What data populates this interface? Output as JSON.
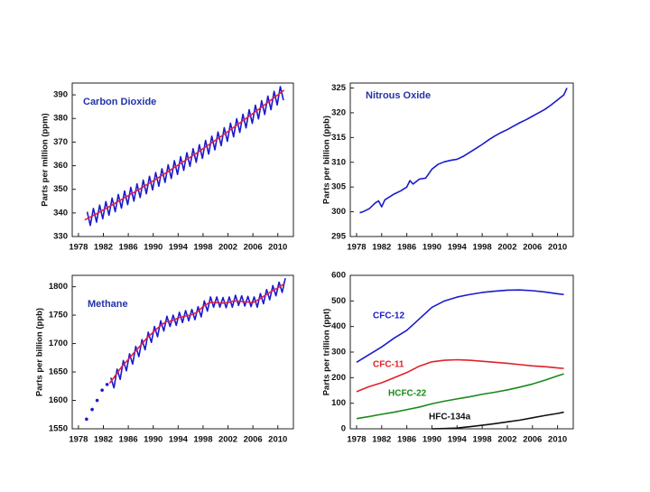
{
  "chart_data": [
    {
      "type": "line",
      "title": "Carbon Dioxide",
      "ylabel": "Parts per million (ppm)",
      "xlim": [
        1977,
        2012.5
      ],
      "xticks": [
        1978,
        1982,
        1986,
        1990,
        1994,
        1998,
        2002,
        2006,
        2010
      ],
      "ylim": [
        330,
        395
      ],
      "yticks": [
        330,
        340,
        350,
        360,
        370,
        380,
        390
      ],
      "series": [
        {
          "color": "#1a1acc",
          "x": [
            1979.4,
            1979.9,
            1980.4,
            1980.9,
            1981.4,
            1981.9,
            1982.4,
            1982.9,
            1983.4,
            1983.9,
            1984.4,
            1984.9,
            1985.4,
            1985.9,
            1986.4,
            1986.9,
            1987.4,
            1987.9,
            1988.4,
            1988.9,
            1989.4,
            1989.9,
            1990.4,
            1990.9,
            1991.4,
            1991.9,
            1992.4,
            1992.9,
            1993.4,
            1993.9,
            1994.4,
            1994.9,
            1995.4,
            1995.9,
            1996.4,
            1996.9,
            1997.4,
            1997.9,
            1998.4,
            1998.9,
            1999.4,
            1999.9,
            2000.4,
            2000.9,
            2001.4,
            2001.9,
            2002.4,
            2002.9,
            2003.4,
            2003.9,
            2004.4,
            2004.9,
            2005.4,
            2005.9,
            2006.4,
            2006.9,
            2007.4,
            2007.9,
            2008.4,
            2008.9,
            2009.4,
            2009.9,
            2010.4,
            2010.9
          ],
          "values": [
            340.5,
            334.7,
            341.9,
            336.1,
            343.3,
            337.5,
            344.8,
            339.0,
            346.3,
            340.5,
            347.8,
            342.0,
            349.3,
            343.5,
            350.8,
            345.0,
            352.3,
            346.5,
            353.9,
            348.1,
            355.5,
            349.7,
            357.1,
            351.3,
            358.7,
            352.9,
            360.4,
            354.6,
            362.1,
            356.3,
            363.8,
            358.0,
            365.5,
            359.7,
            367.2,
            361.4,
            368.9,
            363.1,
            370.7,
            364.9,
            372.5,
            366.7,
            374.3,
            368.5,
            376.1,
            370.3,
            378.0,
            372.2,
            379.9,
            374.1,
            381.8,
            376.0,
            383.7,
            377.9,
            385.6,
            379.8,
            387.5,
            381.7,
            389.5,
            383.7,
            391.5,
            385.7,
            393.5,
            387.7
          ]
        },
        {
          "color": "#e0204a",
          "x": [
            1979,
            1980,
            1981,
            1982,
            1983,
            1984,
            1985,
            1986,
            1987,
            1988,
            1989,
            1990,
            1991,
            1992,
            1993,
            1994,
            1995,
            1996,
            1997,
            1998,
            1999,
            2000,
            2001,
            2002,
            2003,
            2004,
            2005,
            2006,
            2007,
            2008,
            2009,
            2010,
            2011
          ],
          "values": [
            337.0,
            338.4,
            339.8,
            341.3,
            342.8,
            344.3,
            345.8,
            347.3,
            348.8,
            350.4,
            352.0,
            353.6,
            355.2,
            356.9,
            358.6,
            360.3,
            362.0,
            363.7,
            365.4,
            367.2,
            369.0,
            370.8,
            372.6,
            374.5,
            376.4,
            378.3,
            380.2,
            382.1,
            384.0,
            386.0,
            388.0,
            390.0,
            392.0
          ]
        }
      ]
    },
    {
      "type": "line",
      "title": "Nitrous Oxide",
      "ylabel": "Parts per billion (ppb)",
      "xlim": [
        1977,
        2012.5
      ],
      "xticks": [
        1978,
        1982,
        1986,
        1990,
        1994,
        1998,
        2002,
        2006,
        2010
      ],
      "ylim": [
        295,
        326
      ],
      "yticks": [
        295,
        300,
        305,
        310,
        315,
        320,
        325
      ],
      "series": [
        {
          "color": "#1a1acc",
          "x": [
            1978.5,
            1979,
            1980,
            1981,
            1981.5,
            1982,
            1982.5,
            1983,
            1984,
            1985,
            1986,
            1986.5,
            1987,
            1988,
            1989,
            1990,
            1991,
            1992,
            1993,
            1994,
            1995,
            1996,
            1997,
            1998,
            1999,
            2000,
            2001,
            2002,
            2003,
            2004,
            2005,
            2006,
            2007,
            2008,
            2009,
            2010,
            2011,
            2011.5
          ],
          "values": [
            299.8,
            300.0,
            300.6,
            301.8,
            302.2,
            301.0,
            302.4,
            302.8,
            303.6,
            304.2,
            305.0,
            306.3,
            305.6,
            306.6,
            306.8,
            308.6,
            309.6,
            310.1,
            310.4,
            310.6,
            311.2,
            312.0,
            312.8,
            313.6,
            314.5,
            315.3,
            316.0,
            316.6,
            317.3,
            318.0,
            318.6,
            319.3,
            320.0,
            320.7,
            321.6,
            322.6,
            323.6,
            325.0
          ]
        }
      ]
    },
    {
      "type": "line",
      "title": "Methane",
      "ylabel": "Parts per billion (ppb)",
      "xlim": [
        1977,
        2012.5
      ],
      "xticks": [
        1978,
        1982,
        1986,
        1990,
        1994,
        1998,
        2002,
        2006,
        2010
      ],
      "ylim": [
        1550,
        1820
      ],
      "yticks": [
        1550,
        1600,
        1650,
        1700,
        1750,
        1800
      ],
      "series": [
        {
          "color": "#1a1acc",
          "mode": "markers",
          "x": [
            1979.3,
            1980.2,
            1981.0,
            1981.8,
            1982.6
          ],
          "values": [
            1567,
            1584,
            1600,
            1618,
            1628
          ]
        },
        {
          "color": "#1a1acc",
          "x": [
            1983.2,
            1983.7,
            1984.2,
            1984.7,
            1985.2,
            1985.7,
            1986.2,
            1986.7,
            1987.2,
            1987.7,
            1988.2,
            1988.7,
            1989.2,
            1989.7,
            1990.2,
            1990.7,
            1991.2,
            1991.7,
            1992.2,
            1992.7,
            1993.2,
            1993.7,
            1994.2,
            1994.7,
            1995.2,
            1995.7,
            1996.2,
            1996.7,
            1997.2,
            1997.7,
            1998.2,
            1998.7,
            1999.2,
            1999.7,
            2000.2,
            2000.7,
            2001.2,
            2001.7,
            2002.2,
            2002.7,
            2003.2,
            2003.7,
            2004.2,
            2004.7,
            2005.2,
            2005.7,
            2006.2,
            2006.7,
            2007.2,
            2007.7,
            2008.2,
            2008.7,
            2009.2,
            2009.7,
            2010.2,
            2010.7,
            2011.2
          ],
          "values": [
            1640,
            1622,
            1655,
            1637,
            1670,
            1652,
            1682,
            1664,
            1695,
            1677,
            1707,
            1689,
            1720,
            1702,
            1730,
            1712,
            1740,
            1722,
            1748,
            1730,
            1750,
            1732,
            1755,
            1737,
            1758,
            1740,
            1760,
            1742,
            1765,
            1747,
            1775,
            1757,
            1782,
            1764,
            1782,
            1764,
            1781,
            1763,
            1782,
            1764,
            1785,
            1767,
            1784,
            1766,
            1783,
            1765,
            1782,
            1764,
            1788,
            1770,
            1795,
            1777,
            1802,
            1784,
            1808,
            1790,
            1815
          ]
        },
        {
          "color": "#e0204a",
          "x": [
            1983,
            1984,
            1985,
            1986,
            1987,
            1988,
            1989,
            1990,
            1991,
            1992,
            1993,
            1994,
            1995,
            1996,
            1997,
            1998,
            1999,
            2000,
            2001,
            2002,
            2003,
            2004,
            2005,
            2006,
            2007,
            2008,
            2009,
            2010,
            2011
          ],
          "values": [
            1630,
            1645,
            1660,
            1672,
            1685,
            1697,
            1710,
            1720,
            1730,
            1738,
            1740,
            1745,
            1748,
            1750,
            1755,
            1765,
            1772,
            1772,
            1771,
            1772,
            1775,
            1774,
            1773,
            1772,
            1778,
            1785,
            1792,
            1798,
            1805
          ]
        }
      ]
    },
    {
      "type": "line",
      "ylabel": "Parts per trillion (ppt)",
      "xlim": [
        1977,
        2012.5
      ],
      "xticks": [
        1978,
        1982,
        1986,
        1990,
        1994,
        1998,
        2002,
        2006,
        2010
      ],
      "ylim": [
        0,
        600
      ],
      "yticks": [
        0,
        100,
        200,
        300,
        400,
        500,
        600
      ],
      "series": [
        {
          "name": "CFC-12",
          "color": "#1a1acc",
          "x": [
            1978,
            1980,
            1982,
            1984,
            1986,
            1988,
            1990,
            1992,
            1994,
            1996,
            1998,
            2000,
            2002,
            2004,
            2006,
            2008,
            2010,
            2011
          ],
          "values": [
            260,
            290,
            320,
            355,
            385,
            430,
            475,
            500,
            515,
            525,
            533,
            538,
            542,
            543,
            540,
            535,
            528,
            525
          ]
        },
        {
          "name": "CFC-11",
          "color": "#e0202a",
          "x": [
            1978,
            1980,
            1982,
            1984,
            1986,
            1988,
            1990,
            1992,
            1994,
            1996,
            1998,
            2000,
            2002,
            2004,
            2006,
            2008,
            2010,
            2011
          ],
          "values": [
            145,
            165,
            180,
            200,
            220,
            245,
            262,
            268,
            270,
            268,
            264,
            260,
            256,
            251,
            246,
            243,
            238,
            236
          ]
        },
        {
          "name": "HCFC-22",
          "color": "#1a8a1a",
          "x": [
            1978,
            1980,
            1982,
            1984,
            1986,
            1988,
            1990,
            1992,
            1994,
            1996,
            1998,
            2000,
            2002,
            2004,
            2006,
            2008,
            2010,
            2011
          ],
          "values": [
            40,
            48,
            57,
            65,
            75,
            85,
            98,
            108,
            117,
            125,
            135,
            143,
            152,
            163,
            175,
            190,
            207,
            215
          ]
        },
        {
          "name": "HFC-134a",
          "color": "#111111",
          "x": [
            1990,
            1992,
            1994,
            1996,
            1998,
            2000,
            2002,
            2004,
            2006,
            2008,
            2010,
            2011
          ],
          "values": [
            0,
            1,
            3,
            8,
            14,
            20,
            27,
            34,
            43,
            52,
            60,
            65
          ]
        }
      ]
    }
  ]
}
